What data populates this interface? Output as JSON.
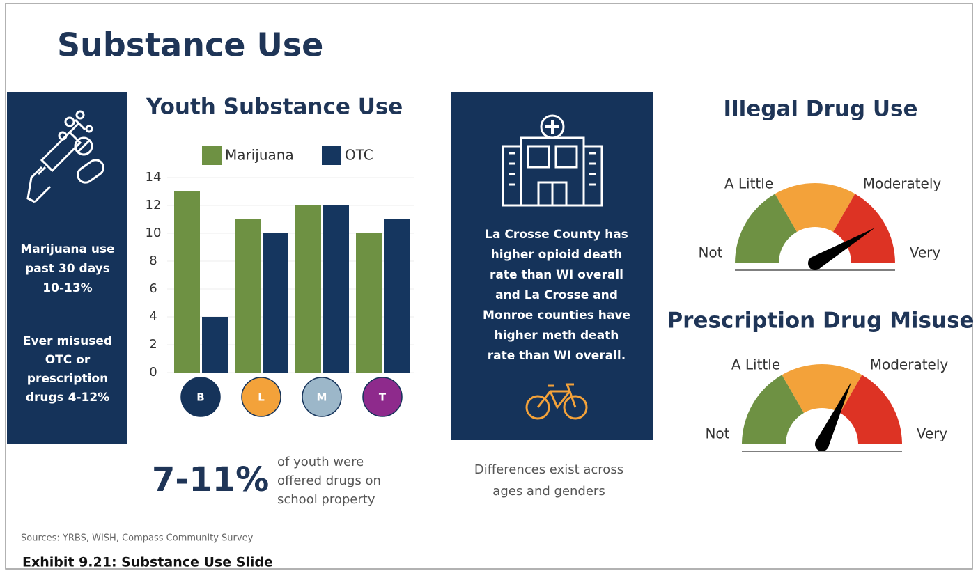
{
  "title": "Substance Use",
  "left_panel": {
    "block1": [
      "Marijuana use",
      "past 30 days",
      "10-13%"
    ],
    "block2": [
      "Ever misused",
      "OTC or",
      "prescription",
      "drugs 4-12%"
    ]
  },
  "stat": {
    "value": "7-11%",
    "text": [
      "of youth were",
      "offered drugs on",
      "school property"
    ]
  },
  "center_panel": {
    "text": [
      "La Crosse County has",
      "higher opioid death",
      "rate than WI overall",
      "and La Crosse and",
      "Monroe counties have",
      "higher meth death",
      "rate than WI overall."
    ]
  },
  "note": [
    "Differences exist across",
    "ages and genders"
  ],
  "sources": "Sources: YRBS, WISH, Compass Community Survey",
  "caption": "Exhibit 9.21: Substance Use Slide",
  "chart_data": [
    {
      "type": "bar",
      "title": "Youth Substance Use",
      "categories": [
        "B",
        "L",
        "M",
        "T"
      ],
      "category_colors": [
        "#15335a",
        "#f3a23a",
        "#9cb7c9",
        "#8e2a8c"
      ],
      "series": [
        {
          "name": "Marijuana",
          "color": "#6e9143",
          "values": [
            13,
            11,
            12,
            10
          ]
        },
        {
          "name": "OTC",
          "color": "#15365f",
          "values": [
            4,
            10,
            12,
            11
          ]
        }
      ],
      "ylim": [
        0,
        14
      ],
      "yticks": [
        0,
        2,
        4,
        6,
        8,
        10,
        12,
        14
      ],
      "grid": true
    },
    {
      "type": "gauge",
      "title": "Illegal Drug Use",
      "labels": [
        "Not",
        "A Little",
        "Moderately",
        "Very"
      ],
      "segment_colors": [
        "#6e9143",
        "#f3a23a",
        "#dd3324"
      ],
      "needle_color": "#000000",
      "ylim": [
        0,
        100
      ],
      "value": 83
    },
    {
      "type": "gauge",
      "title": "Prescription Drug Misuse",
      "labels": [
        "Not",
        "A Little",
        "Moderately",
        "Very"
      ],
      "segment_colors": [
        "#6e9143",
        "#f3a23a",
        "#dd3324"
      ],
      "needle_color": "#000000",
      "ylim": [
        0,
        100
      ],
      "value": 64
    }
  ]
}
